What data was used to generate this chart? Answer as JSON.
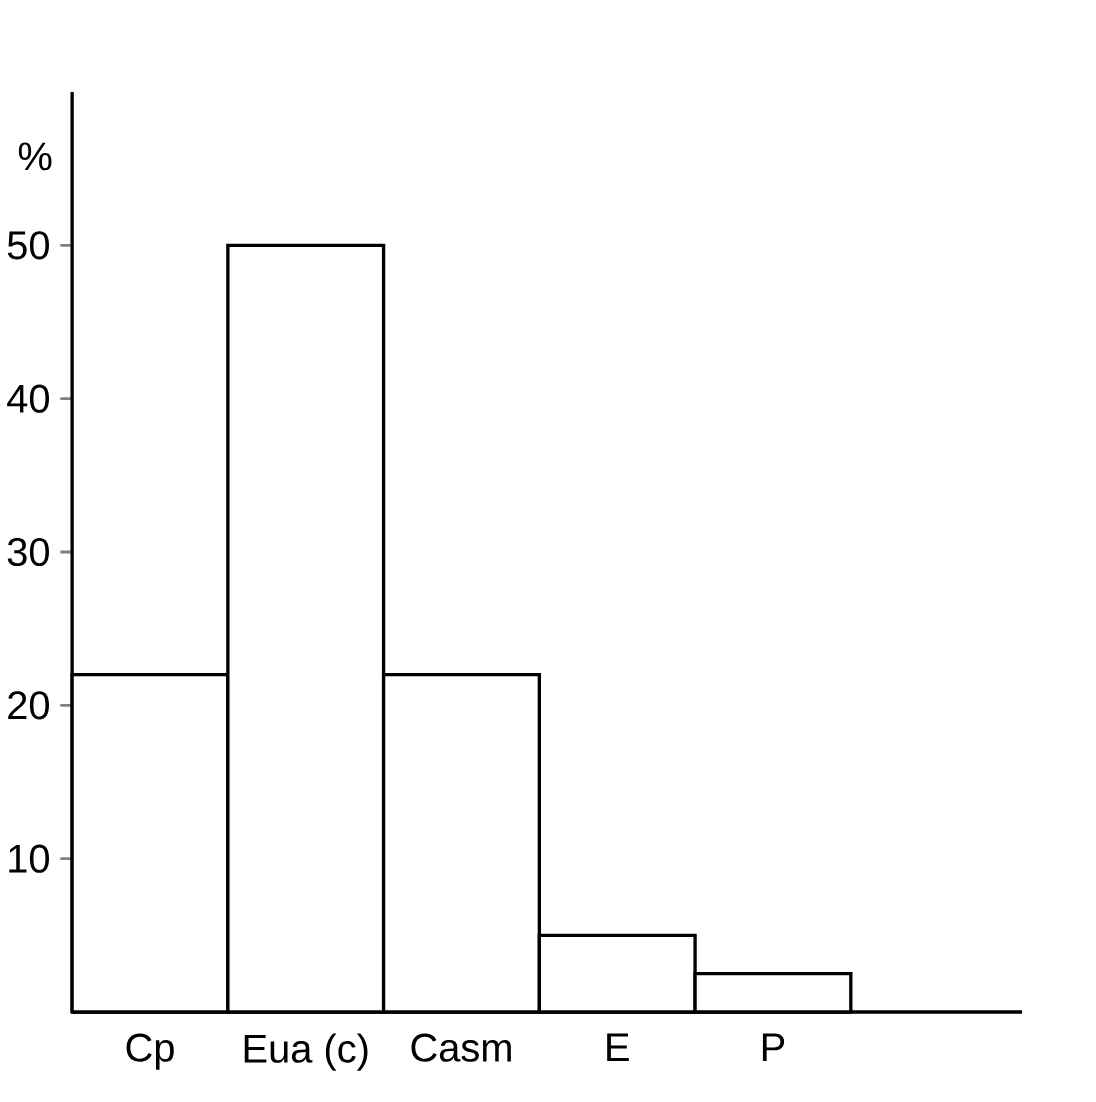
{
  "chart_data": {
    "type": "bar",
    "ylabel": "%",
    "categories": [
      "Cp",
      "Eua (c)",
      "Casm",
      "E",
      "P"
    ],
    "values": [
      22,
      50,
      22,
      5,
      2.5
    ],
    "color": "#000000",
    "ylim": [
      0,
      60
    ],
    "yticks": [
      10,
      20,
      30,
      40,
      50
    ]
  }
}
